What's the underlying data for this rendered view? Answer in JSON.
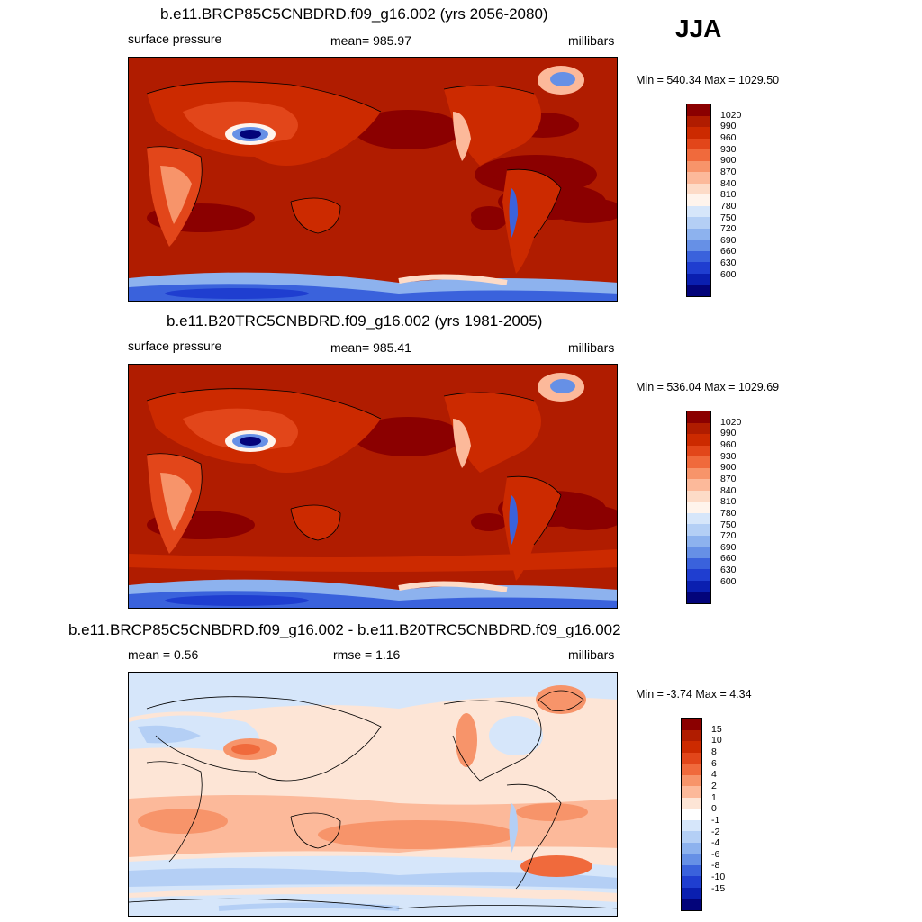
{
  "season": "JJA",
  "panels": [
    {
      "title": "b.e11.BRCP85C5CNBDRD.f09_g16.002 (yrs 2056-2080)",
      "left_label": "surface pressure",
      "center_label": "mean= 985.97",
      "right_label": "millibars",
      "minmax": "Min = 540.34 Max = 1029.50",
      "colorbar_labels": [
        "1020",
        "990",
        "960",
        "930",
        "900",
        "870",
        "840",
        "810",
        "780",
        "750",
        "720",
        "690",
        "660",
        "630",
        "600"
      ]
    },
    {
      "title": "b.e11.B20TRC5CNBDRD.f09_g16.002 (yrs 1981-2005)",
      "left_label": "surface pressure",
      "center_label": "mean= 985.41",
      "right_label": "millibars",
      "minmax": "Min = 536.04 Max = 1029.69",
      "colorbar_labels": [
        "1020",
        "990",
        "960",
        "930",
        "900",
        "870",
        "840",
        "810",
        "780",
        "750",
        "720",
        "690",
        "660",
        "630",
        "600"
      ]
    },
    {
      "title": "b.e11.BRCP85C5CNBDRD.f09_g16.002 - b.e11.B20TRC5CNBDRD.f09_g16.002",
      "left_label": "mean =   0.56",
      "center_label": "rmse =   1.16",
      "right_label": "millibars",
      "minmax": "Min =  -3.74 Max =   4.34",
      "colorbar_labels": [
        "15",
        "10",
        "8",
        "6",
        "4",
        "2",
        "1",
        "0",
        "-1",
        "-2",
        "-4",
        "-6",
        "-8",
        "-10",
        "-15"
      ]
    }
  ],
  "colors": {
    "abs_scale": [
      "#8b0000",
      "#b01c00",
      "#cc2a00",
      "#e2461a",
      "#f06a3c",
      "#f7946a",
      "#fcb99a",
      "#fddbc7",
      "#fff4ec",
      "#d6e6fa",
      "#b4cff5",
      "#8db2ee",
      "#6690e6",
      "#3a62dc",
      "#1f3ed0",
      "#0a1fb0",
      "#03047a"
    ],
    "diff_scale": [
      "#8b0000",
      "#b01c00",
      "#cc2a00",
      "#e2461a",
      "#f06a3c",
      "#f7946a",
      "#fcb99a",
      "#fde5d6",
      "#ffffff",
      "#d6e6fa",
      "#b4cff5",
      "#8db2ee",
      "#6690e6",
      "#3a62dc",
      "#1f3ed0",
      "#0a1fb0",
      "#03047a"
    ]
  }
}
